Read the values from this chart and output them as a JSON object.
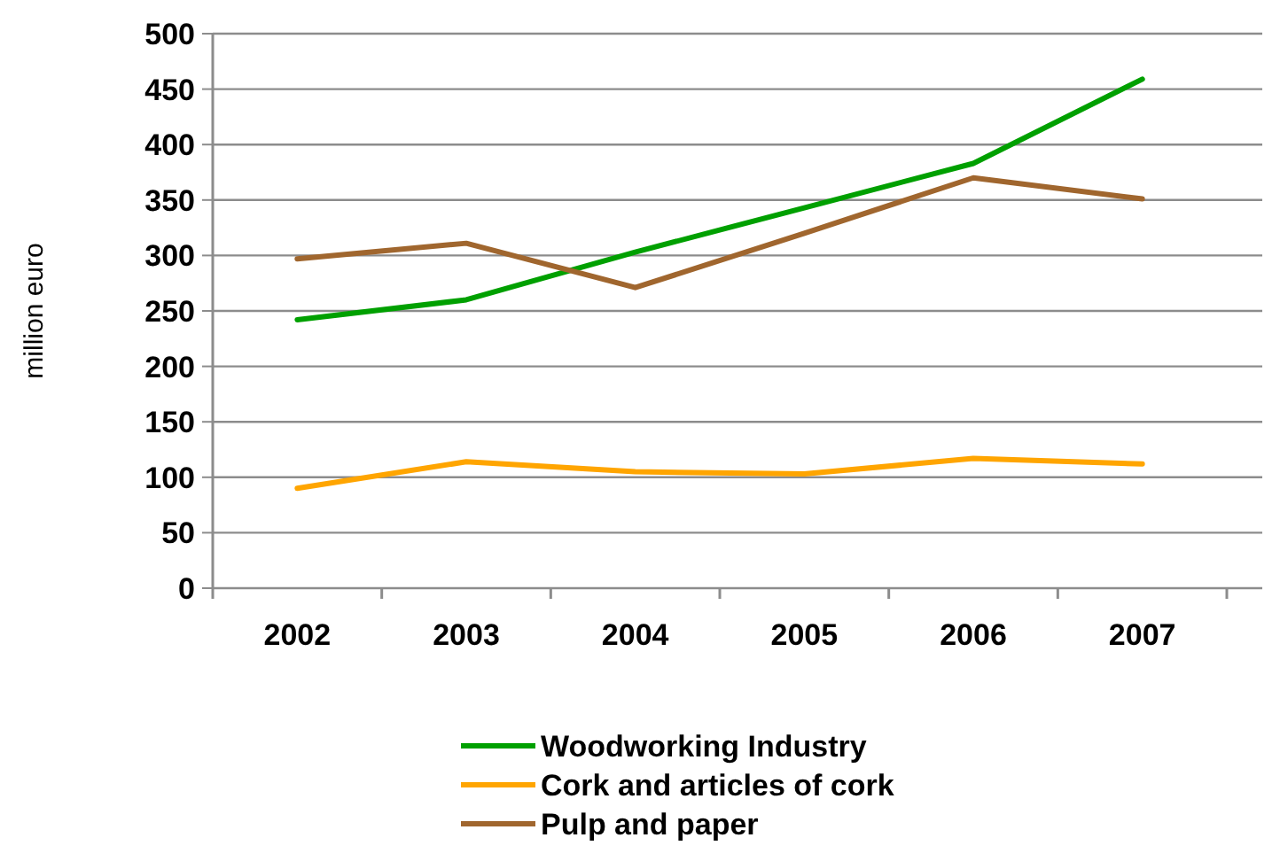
{
  "chart_data": {
    "type": "line",
    "ylabel": "million euro",
    "categories": [
      "2002",
      "2003",
      "2004",
      "2005",
      "2006",
      "2007"
    ],
    "series": [
      {
        "name": "Woodworking Industry",
        "color": "#00a000",
        "values": [
          242,
          260,
          303,
          343,
          383,
          459
        ]
      },
      {
        "name": "Cork and articles of cork",
        "color": "#ffa500",
        "values": [
          90,
          114,
          105,
          103,
          117,
          112
        ]
      },
      {
        "name": "Pulp and paper",
        "color": "#a0662e",
        "values": [
          297,
          311,
          271,
          320,
          370,
          351
        ]
      }
    ],
    "ylim": [
      0,
      500
    ],
    "yticks": [
      0,
      50,
      100,
      150,
      200,
      250,
      300,
      350,
      400,
      450,
      500
    ],
    "grid": "y",
    "legend": "bottom",
    "line_style": "solid",
    "marker": "none"
  }
}
